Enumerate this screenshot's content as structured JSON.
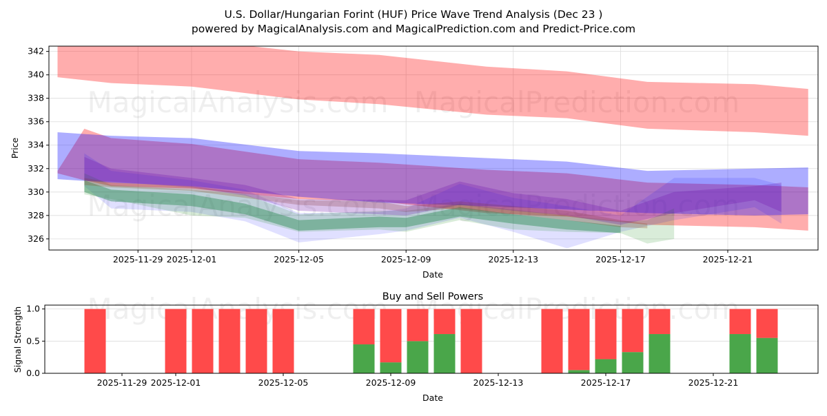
{
  "title_line1": "U.S. Dollar/Hungarian Forint (HUF) Price Wave Trend Analysis (Dec 23 )",
  "title_line2": "powered by MagicalAnalysis.com and MagicalPrediction.com and Predict-Price.com",
  "watermarks": [
    "MagicalAnalysis.com",
    "MagicalPrediction.com"
  ],
  "chart_data": [
    {
      "type": "area",
      "title": "",
      "xlabel": "Date",
      "ylabel": "Price",
      "ylim": [
        325.05,
        342.45
      ],
      "xlim": [
        "2025-11-25.7",
        "2025-12-24.37"
      ],
      "grid": true,
      "yticks": [
        "326",
        "328",
        "330",
        "332",
        "334",
        "336",
        "338",
        "340",
        "342"
      ],
      "xticks": [
        "2025-11-29",
        "2025-12-01",
        "2025-12-05",
        "2025-12-09",
        "2025-12-13",
        "2025-12-17",
        "2025-12-21"
      ],
      "bands": [
        {
          "name": "upper-red-band",
          "color": "#ff0000",
          "opacity": 0.32,
          "x": [
            "2025-11-26",
            "2025-11-28",
            "2025-12-01",
            "2025-12-05",
            "2025-12-08",
            "2025-12-12",
            "2025-12-15",
            "2025-12-18",
            "2025-12-22",
            "2025-12-24"
          ],
          "upper": [
            343.5,
            343.2,
            343.0,
            342.0,
            341.7,
            340.7,
            340.3,
            339.4,
            339.2,
            338.8
          ],
          "lower": [
            339.8,
            339.3,
            339.0,
            337.9,
            337.5,
            336.6,
            336.3,
            335.4,
            335.1,
            334.8
          ]
        },
        {
          "name": "lower-red-band",
          "color": "#ff0000",
          "opacity": 0.32,
          "x": [
            "2025-11-26",
            "2025-11-27",
            "2025-11-28",
            "2025-12-01",
            "2025-12-05",
            "2025-12-08",
            "2025-12-12",
            "2025-12-15",
            "2025-12-18",
            "2025-12-22",
            "2025-12-24"
          ],
          "upper": [
            331.8,
            335.4,
            334.6,
            334.1,
            332.8,
            332.5,
            331.9,
            331.6,
            330.8,
            330.6,
            330.4
          ],
          "lower": [
            331.6,
            331.0,
            330.5,
            330.3,
            329.4,
            329.2,
            328.2,
            327.9,
            327.2,
            327.0,
            326.7
          ]
        },
        {
          "name": "blue-band",
          "color": "#0000ff",
          "opacity": 0.32,
          "x": [
            "2025-11-26",
            "2025-11-28",
            "2025-12-01",
            "2025-12-05",
            "2025-12-08",
            "2025-12-12",
            "2025-12-15",
            "2025-12-18",
            "2025-12-22",
            "2025-12-24"
          ],
          "upper": [
            335.1,
            334.8,
            334.6,
            333.5,
            333.3,
            332.9,
            332.6,
            331.8,
            332.0,
            332.1
          ],
          "lower": [
            331.1,
            330.8,
            330.5,
            329.6,
            329.1,
            328.8,
            328.5,
            328.2,
            328.0,
            328.1
          ]
        },
        {
          "name": "wave-blue-wide",
          "color": "#0000ff",
          "opacity": 0.12,
          "x": [
            "2025-11-27",
            "2025-11-28",
            "2025-12-01",
            "2025-12-03",
            "2025-12-05",
            "2025-12-08",
            "2025-12-09",
            "2025-12-11",
            "2025-12-13",
            "2025-12-15",
            "2025-12-17",
            "2025-12-19",
            "2025-12-22",
            "2025-12-23"
          ],
          "upper": [
            333.3,
            331.8,
            331.0,
            330.2,
            328.2,
            328.3,
            328.6,
            330.7,
            329.5,
            328.8,
            328.0,
            331.2,
            331.2,
            330.6
          ],
          "lower": [
            330.5,
            328.6,
            328.3,
            327.5,
            325.7,
            326.4,
            326.7,
            327.8,
            326.6,
            325.2,
            326.6,
            327.6,
            328.7,
            327.3
          ]
        },
        {
          "name": "wave-green-wide",
          "color": "#008000",
          "opacity": 0.15,
          "x": [
            "2025-11-27",
            "2025-11-28",
            "2025-12-01",
            "2025-12-03",
            "2025-12-05",
            "2025-12-08",
            "2025-12-09",
            "2025-12-11",
            "2025-12-13",
            "2025-12-15",
            "2025-12-17",
            "2025-12-18",
            "2025-12-19"
          ],
          "upper": [
            331.6,
            330.6,
            330.2,
            329.8,
            328.1,
            328.4,
            328.4,
            329.0,
            328.5,
            328.0,
            327.5,
            327.6,
            328.6
          ],
          "lower": [
            329.8,
            329.4,
            328.0,
            327.8,
            326.6,
            326.8,
            326.6,
            327.6,
            326.8,
            326.6,
            326.5,
            325.6,
            326.0
          ]
        },
        {
          "name": "wave-green-core",
          "color": "#2e8b57",
          "opacity": 0.45,
          "x": [
            "2025-11-27",
            "2025-11-28",
            "2025-12-01",
            "2025-12-03",
            "2025-12-05",
            "2025-12-08",
            "2025-12-09",
            "2025-12-11",
            "2025-12-13",
            "2025-12-15",
            "2025-12-17"
          ],
          "upper": [
            331.0,
            330.2,
            329.8,
            329.0,
            327.6,
            327.9,
            327.8,
            328.7,
            328.1,
            327.6,
            327.1
          ],
          "lower": [
            330.0,
            329.2,
            328.8,
            328.1,
            326.7,
            327.0,
            327.0,
            327.9,
            327.3,
            326.8,
            326.5
          ]
        },
        {
          "name": "wave-brown-core",
          "color": "#8b4513",
          "opacity": 0.25,
          "x": [
            "2025-11-27",
            "2025-11-28",
            "2025-12-01",
            "2025-12-05",
            "2025-12-08",
            "2025-12-09",
            "2025-12-11",
            "2025-12-13",
            "2025-12-15",
            "2025-12-17",
            "2025-12-18"
          ],
          "upper": [
            331.2,
            330.8,
            330.5,
            329.3,
            329.2,
            328.8,
            329.2,
            328.8,
            328.4,
            327.6,
            327.3
          ],
          "lower": [
            330.6,
            330.4,
            330.1,
            328.9,
            328.6,
            328.3,
            328.6,
            328.1,
            327.6,
            327.0,
            326.9
          ]
        },
        {
          "name": "wave-purple",
          "color": "#6a0dad",
          "opacity": 0.25,
          "x": [
            "2025-11-27",
            "2025-11-28",
            "2025-12-01",
            "2025-12-03",
            "2025-12-05",
            "2025-12-09",
            "2025-12-11",
            "2025-12-13",
            "2025-12-15",
            "2025-12-17",
            "2025-12-19",
            "2025-12-22",
            "2025-12-23"
          ],
          "upper": [
            333.0,
            332.0,
            331.2,
            330.6,
            329.4,
            329.3,
            330.9,
            329.9,
            329.4,
            328.4,
            330.0,
            330.5,
            330.8
          ],
          "lower": [
            331.0,
            330.9,
            330.4,
            329.7,
            328.4,
            328.0,
            328.9,
            328.4,
            328.0,
            327.2,
            328.2,
            329.3,
            328.3
          ]
        }
      ]
    },
    {
      "type": "bar",
      "title": "Buy and Sell Powers",
      "xlabel": "Date",
      "ylabel": "Signal Strength",
      "ylim": [
        0,
        1.06
      ],
      "grid": true,
      "yticks": [
        "0.0",
        "0.5",
        "1.0"
      ],
      "xticks": [
        "2025-11-29",
        "2025-12-01",
        "2025-12-05",
        "2025-12-09",
        "2025-12-13",
        "2025-12-17",
        "2025-12-21"
      ],
      "colors": {
        "sell": "#ff4a4a",
        "buy": "#4aa64a"
      },
      "dates": [
        "2025-11-28",
        "2025-12-01",
        "2025-12-02",
        "2025-12-03",
        "2025-12-04",
        "2025-12-05",
        "2025-12-08",
        "2025-12-09",
        "2025-12-10",
        "2025-12-11",
        "2025-12-12",
        "2025-12-15",
        "2025-12-16",
        "2025-12-17",
        "2025-12-18",
        "2025-12-19",
        "2025-12-22",
        "2025-12-23"
      ],
      "buy": [
        0,
        0,
        0,
        0,
        0,
        0,
        0.45,
        0.17,
        0.5,
        0.61,
        0,
        0,
        0.05,
        0.22,
        0.33,
        0.61,
        0.61,
        0.55
      ],
      "sell": [
        1,
        1,
        1,
        1,
        1,
        1,
        0.55,
        0.83,
        0.5,
        0.39,
        1,
        1,
        0.95,
        0.78,
        0.67,
        0.39,
        0.39,
        0.45
      ]
    }
  ]
}
